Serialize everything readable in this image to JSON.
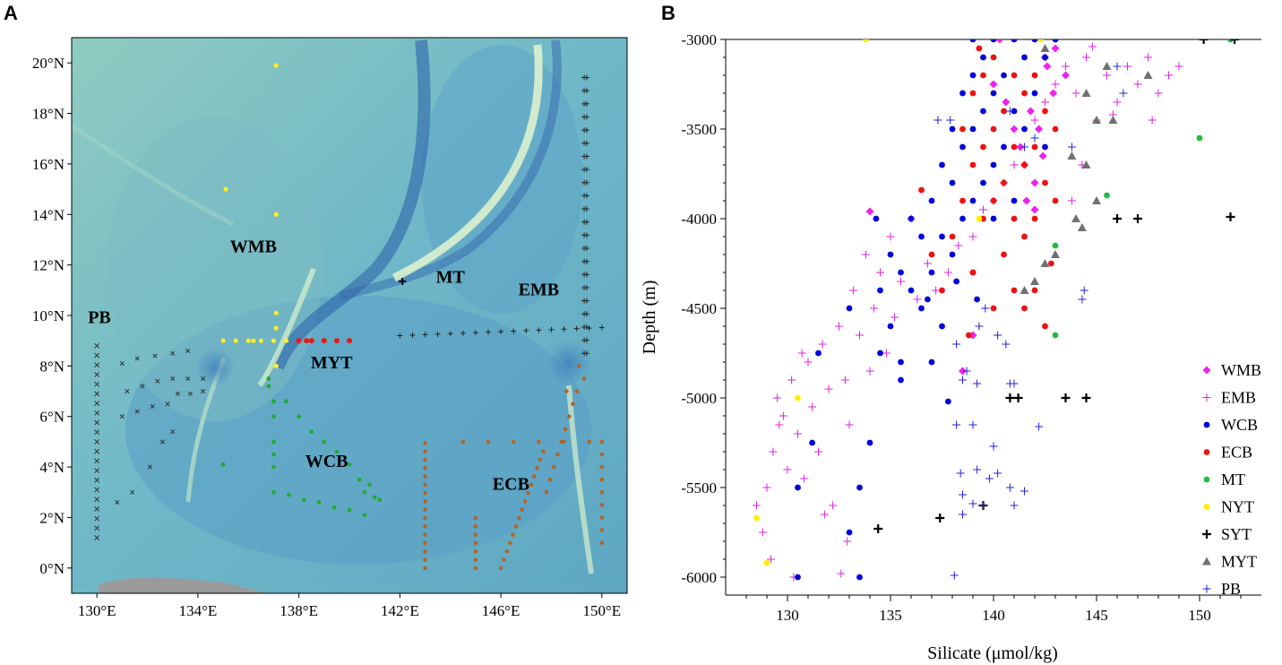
{
  "panel_a_label": "A",
  "panel_b_label": "B",
  "map": {
    "lon_ticks": [
      "130°E",
      "134°E",
      "138°E",
      "142°E",
      "146°E",
      "150°E"
    ],
    "lat_ticks": [
      "0°N",
      "2°N",
      "4°N",
      "6°N",
      "8°N",
      "10°N",
      "12°N",
      "14°N",
      "16°N",
      "18°N",
      "20°N"
    ],
    "regions": [
      {
        "name": "PB",
        "lon": 130.1,
        "lat": 9.7
      },
      {
        "name": "WMB",
        "lon": 136.2,
        "lat": 12.5
      },
      {
        "name": "MT",
        "lon": 144.0,
        "lat": 11.3
      },
      {
        "name": "EMB",
        "lon": 147.5,
        "lat": 10.8
      },
      {
        "name": "MYT",
        "lon": 139.3,
        "lat": 7.9
      },
      {
        "name": "WCB",
        "lon": 139.1,
        "lat": 4.0
      },
      {
        "name": "ECB",
        "lon": 146.4,
        "lat": 3.1
      }
    ],
    "colors": {
      "water": "#6fb3c7",
      "deep": "#3d7fb8",
      "trench": "#2e5fa8",
      "ridge": "#d9f0d0",
      "land": "#9a9a9a",
      "plateau": "#8dc7bf"
    }
  },
  "chart_data": {
    "type": "scatter",
    "xlabel": "Silicate (μmol/kg)",
    "ylabel": "Depth (m)",
    "xlim": [
      127,
      153
    ],
    "ylim": [
      -6100,
      -3000
    ],
    "xticks": [
      130,
      135,
      140,
      145,
      150
    ],
    "yticks": [
      -3000,
      -3500,
      -4000,
      -4500,
      -5000,
      -5500,
      -6000
    ],
    "series": [
      {
        "name": "WMB",
        "marker": "diamond",
        "color": "#ee22ee",
        "points": [
          [
            134,
            -3960
          ],
          [
            139,
            -4650
          ],
          [
            138.5,
            -4850
          ],
          [
            140,
            -3250
          ],
          [
            140.6,
            -3350
          ],
          [
            141,
            -3500
          ],
          [
            141.3,
            -3600
          ],
          [
            141.5,
            -3700
          ],
          [
            142,
            -3800
          ],
          [
            142,
            -3950
          ],
          [
            142.5,
            -3100
          ],
          [
            143,
            -3050
          ],
          [
            143.5,
            -3200
          ],
          [
            142.2,
            -3500
          ],
          [
            141.8,
            -3400
          ],
          [
            142.9,
            -3300
          ],
          [
            142.4,
            -3650
          ],
          [
            141.6,
            -3900
          ],
          [
            140.3,
            -3000
          ],
          [
            142.6,
            -3150
          ]
        ]
      },
      {
        "name": "EMB",
        "marker": "plus-thin",
        "color": "#dd22dd",
        "points": [
          [
            128.5,
            -5600
          ],
          [
            128.8,
            -5750
          ],
          [
            129,
            -5500
          ],
          [
            129.3,
            -5300
          ],
          [
            129.5,
            -5000
          ],
          [
            129.8,
            -5100
          ],
          [
            130,
            -5400
          ],
          [
            130.2,
            -4900
          ],
          [
            130.5,
            -5200
          ],
          [
            130.8,
            -5450
          ],
          [
            131,
            -4800
          ],
          [
            131.2,
            -5050
          ],
          [
            131.5,
            -5300
          ],
          [
            131.7,
            -4700
          ],
          [
            132,
            -4950
          ],
          [
            132.2,
            -5600
          ],
          [
            132.5,
            -4600
          ],
          [
            132.8,
            -4900
          ],
          [
            133,
            -5150
          ],
          [
            133.2,
            -4400
          ],
          [
            133.5,
            -4650
          ],
          [
            133.8,
            -4200
          ],
          [
            134,
            -4850
          ],
          [
            134.2,
            -4500
          ],
          [
            134.5,
            -4300
          ],
          [
            134.8,
            -4750
          ],
          [
            135,
            -4100
          ],
          [
            135.2,
            -4550
          ],
          [
            135.5,
            -4350
          ],
          [
            136,
            -4000
          ],
          [
            136.3,
            -4450
          ],
          [
            136.8,
            -4250
          ],
          [
            137.2,
            -4400
          ],
          [
            137.8,
            -4300
          ],
          [
            138.3,
            -4150
          ],
          [
            139,
            -4100
          ],
          [
            139.5,
            -3950
          ],
          [
            140,
            -3900
          ],
          [
            140.5,
            -3800
          ],
          [
            141,
            -3700
          ],
          [
            141.5,
            -3600
          ],
          [
            142,
            -3450
          ],
          [
            142.5,
            -3350
          ],
          [
            143,
            -3250
          ],
          [
            143.5,
            -3150
          ],
          [
            144,
            -3300
          ],
          [
            144.5,
            -3100
          ],
          [
            145,
            -3450
          ],
          [
            145.5,
            -3200
          ],
          [
            146,
            -3350
          ],
          [
            146.5,
            -3150
          ],
          [
            147,
            -3250
          ],
          [
            147.5,
            -3100
          ],
          [
            148,
            -3300
          ],
          [
            148.5,
            -3200
          ],
          [
            149,
            -3150
          ],
          [
            144.8,
            -3040
          ],
          [
            145.8,
            -3420
          ],
          [
            147.7,
            -3450
          ],
          [
            143.8,
            -3900
          ],
          [
            144.3,
            -3700
          ],
          [
            130.3,
            -6000
          ],
          [
            129.2,
            -5900
          ],
          [
            131.8,
            -5650
          ],
          [
            132.9,
            -5800
          ],
          [
            132.6,
            -5980
          ],
          [
            129.6,
            -5150
          ],
          [
            130.7,
            -4750
          ]
        ]
      },
      {
        "name": "WCB",
        "marker": "circle",
        "color": "#0000dd",
        "points": [
          [
            130.5,
            -5500
          ],
          [
            130.5,
            -6000
          ],
          [
            131.5,
            -4750
          ],
          [
            131.2,
            -5250
          ],
          [
            133,
            -4500
          ],
          [
            133,
            -5750
          ],
          [
            133.5,
            -5500
          ],
          [
            133.5,
            -6000
          ],
          [
            134,
            -5250
          ],
          [
            134.5,
            -4750
          ],
          [
            134.5,
            -4400
          ],
          [
            135,
            -4200
          ],
          [
            135,
            -4600
          ],
          [
            135.5,
            -4300
          ],
          [
            135.5,
            -4800
          ],
          [
            135.5,
            -4900
          ],
          [
            136,
            -4000
          ],
          [
            136,
            -4400
          ],
          [
            136.5,
            -4100
          ],
          [
            136.5,
            -4500
          ],
          [
            137,
            -3900
          ],
          [
            137,
            -4300
          ],
          [
            137.5,
            -3700
          ],
          [
            137.5,
            -4100
          ],
          [
            137.5,
            -4600
          ],
          [
            138,
            -3500
          ],
          [
            138,
            -3800
          ],
          [
            138,
            -4200
          ],
          [
            138.5,
            -3300
          ],
          [
            138.5,
            -3600
          ],
          [
            138.5,
            -4000
          ],
          [
            139,
            -3000
          ],
          [
            139,
            -3200
          ],
          [
            139,
            -3500
          ],
          [
            139,
            -3900
          ],
          [
            139,
            -4300
          ],
          [
            139.5,
            -3100
          ],
          [
            139.5,
            -3400
          ],
          [
            139.5,
            -3800
          ],
          [
            140,
            -3000
          ],
          [
            140,
            -3300
          ],
          [
            140,
            -3700
          ],
          [
            140,
            -4000
          ],
          [
            140.5,
            -3200
          ],
          [
            140.5,
            -3600
          ],
          [
            141,
            -3000
          ],
          [
            141,
            -3400
          ],
          [
            141,
            -3900
          ],
          [
            141.5,
            -3100
          ],
          [
            141.5,
            -3500
          ],
          [
            142,
            -3000
          ],
          [
            142,
            -3300
          ],
          [
            142.5,
            -3100
          ],
          [
            142.5,
            -3600
          ],
          [
            143,
            -3000
          ],
          [
            137.8,
            -5020
          ],
          [
            137,
            -4800
          ],
          [
            134.3,
            -4000
          ],
          [
            136.8,
            -4450
          ],
          [
            138.2,
            -4350
          ],
          [
            139.2,
            -4450
          ]
        ]
      },
      {
        "name": "ECB",
        "marker": "circle",
        "color": "#ee1111",
        "points": [
          [
            136.5,
            -3840
          ],
          [
            137,
            -4200
          ],
          [
            137.5,
            -4400
          ],
          [
            138,
            -4100
          ],
          [
            138.5,
            -3500
          ],
          [
            138.5,
            -3900
          ],
          [
            139,
            -3300
          ],
          [
            139,
            -3700
          ],
          [
            139,
            -4300
          ],
          [
            139.5,
            -3200
          ],
          [
            139.5,
            -3600
          ],
          [
            139.5,
            -4000
          ],
          [
            140,
            -3100
          ],
          [
            140,
            -3500
          ],
          [
            140,
            -3900
          ],
          [
            140,
            -4500
          ],
          [
            140.5,
            -3400
          ],
          [
            140.5,
            -3800
          ],
          [
            140.5,
            -4200
          ],
          [
            141,
            -3200
          ],
          [
            141,
            -3600
          ],
          [
            141,
            -4000
          ],
          [
            141,
            -4400
          ],
          [
            141.5,
            -3300
          ],
          [
            141.5,
            -3700
          ],
          [
            141.5,
            -4100
          ],
          [
            141.5,
            -4500
          ],
          [
            142,
            -3200
          ],
          [
            142,
            -3600
          ],
          [
            142,
            -4000
          ],
          [
            142,
            -4400
          ],
          [
            142.5,
            -3400
          ],
          [
            142.5,
            -3800
          ],
          [
            142.5,
            -4600
          ],
          [
            143,
            -3500
          ],
          [
            143,
            -3900
          ],
          [
            142.8,
            -4250
          ],
          [
            138.8,
            -4650
          ],
          [
            139.3,
            -3050
          ]
        ]
      },
      {
        "name": "MT",
        "marker": "circle",
        "color": "#22bb44",
        "points": [
          [
            151.5,
            -3000
          ],
          [
            150,
            -3550
          ],
          [
            145.5,
            -3870
          ],
          [
            143,
            -4150
          ],
          [
            143,
            -4650
          ]
        ]
      },
      {
        "name": "NYT",
        "marker": "circle",
        "color": "#ffee00",
        "points": [
          [
            133.8,
            -3000
          ],
          [
            142.3,
            -3000
          ],
          [
            139.3,
            -4000
          ],
          [
            130.5,
            -5000
          ],
          [
            128.5,
            -5670
          ],
          [
            129,
            -5920
          ]
        ]
      },
      {
        "name": "SYT",
        "marker": "plus-thick",
        "color": "#000000",
        "points": [
          [
            150.2,
            -3000
          ],
          [
            151.7,
            -3000
          ],
          [
            146,
            -4000
          ],
          [
            147,
            -4000
          ],
          [
            151.5,
            -3990
          ],
          [
            140.8,
            -5000
          ],
          [
            141.2,
            -5000
          ],
          [
            143.5,
            -5000
          ],
          [
            144.5,
            -5000
          ],
          [
            139.5,
            -5600
          ],
          [
            137.4,
            -5670
          ],
          [
            134.4,
            -5730
          ]
        ]
      },
      {
        "name": "MYT",
        "marker": "triangle",
        "color": "#707070",
        "points": [
          [
            142.5,
            -3050
          ],
          [
            144.5,
            -3300
          ],
          [
            145.5,
            -3150
          ],
          [
            147.5,
            -3200
          ],
          [
            145,
            -3450
          ],
          [
            144.5,
            -3700
          ],
          [
            145.8,
            -3450
          ],
          [
            143.8,
            -3650
          ],
          [
            145,
            -3900
          ],
          [
            144,
            -4000
          ],
          [
            144.3,
            -4050
          ],
          [
            142.5,
            -4250
          ],
          [
            143,
            -4200
          ],
          [
            141.5,
            -4400
          ],
          [
            142,
            -4350
          ]
        ]
      },
      {
        "name": "PB",
        "marker": "plus-thin",
        "color": "#2222dd",
        "points": [
          [
            137.3,
            -3450
          ],
          [
            137.9,
            -3450
          ],
          [
            140.8,
            -3400
          ],
          [
            141.5,
            -3600
          ],
          [
            142,
            -3550
          ],
          [
            143.8,
            -3600
          ],
          [
            146,
            -3150
          ],
          [
            146.3,
            -3300
          ],
          [
            144.4,
            -4400
          ],
          [
            144.3,
            -4450
          ],
          [
            139.3,
            -4600
          ],
          [
            139.6,
            -4500
          ],
          [
            140.2,
            -4650
          ],
          [
            140.6,
            -4700
          ],
          [
            138.2,
            -4700
          ],
          [
            138.5,
            -4900
          ],
          [
            138.7,
            -4850
          ],
          [
            139.2,
            -4920
          ],
          [
            140.8,
            -4920
          ],
          [
            141,
            -4920
          ],
          [
            138.2,
            -5150
          ],
          [
            139,
            -5150
          ],
          [
            140,
            -5270
          ],
          [
            142.2,
            -5160
          ],
          [
            138.4,
            -5420
          ],
          [
            139.2,
            -5400
          ],
          [
            139.8,
            -5450
          ],
          [
            140.2,
            -5420
          ],
          [
            140.8,
            -5500
          ],
          [
            141.5,
            -5520
          ],
          [
            138.5,
            -5540
          ],
          [
            139,
            -5590
          ],
          [
            139.5,
            -5600
          ],
          [
            138.5,
            -5650
          ],
          [
            141,
            -5600
          ],
          [
            138.1,
            -5990
          ]
        ]
      }
    ],
    "legend": [
      "WMB",
      "EMB",
      "WCB",
      "ECB",
      "MT",
      "NYT",
      "SYT",
      "MYT",
      "PB"
    ],
    "legend_position": "bottom-right"
  }
}
